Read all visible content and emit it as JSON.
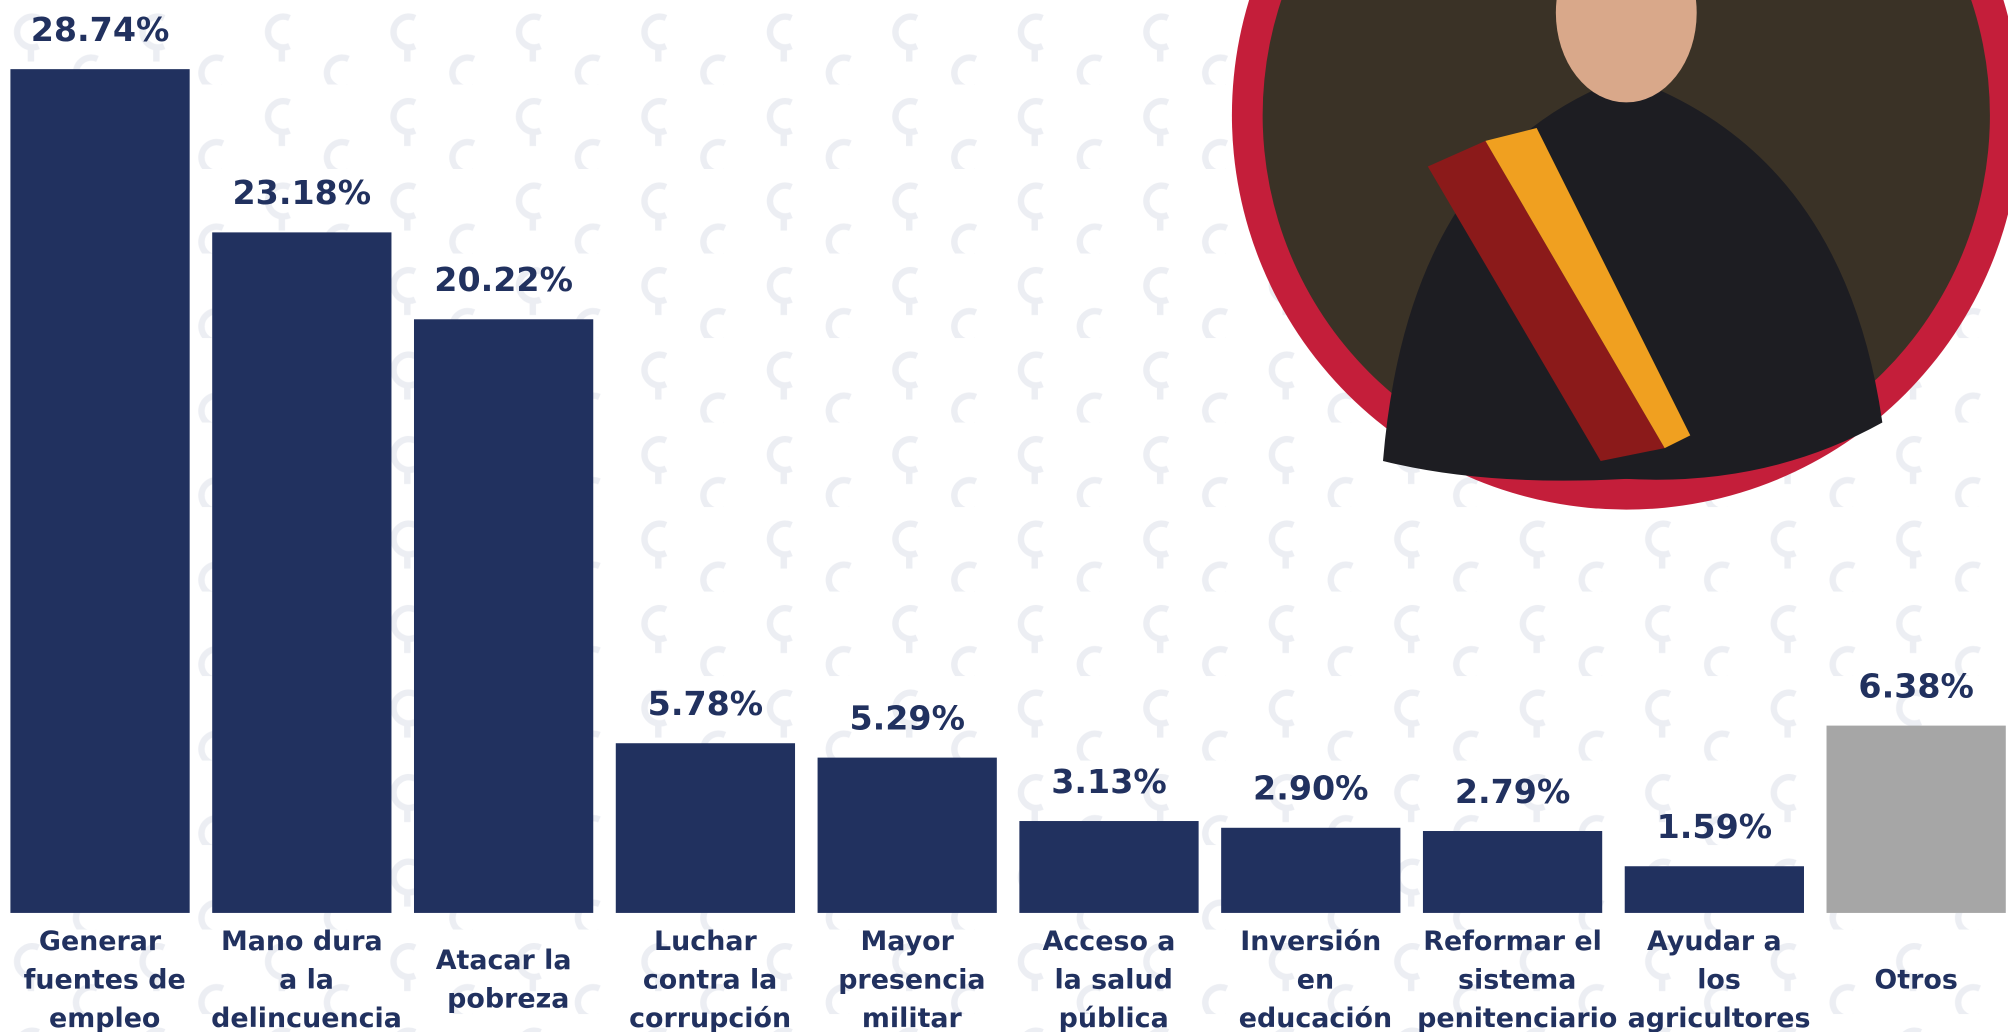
{
  "chart_data": {
    "type": "bar",
    "categories": [
      "Generar fuentes de empleo",
      "Mano dura a la delincuencia",
      "Atacar la pobreza",
      "Luchar contra la corrupción",
      "Mayor presencia militar",
      "Acceso a la salud pública",
      "Inversión en educación",
      "Reformar el sistema penitenciario",
      "Ayudar a los agricultores",
      "Otros"
    ],
    "values": [
      28.74,
      23.18,
      20.22,
      5.78,
      5.29,
      3.13,
      2.9,
      2.79,
      1.59,
      6.38
    ],
    "value_labels": [
      "28.74%",
      "23.18%",
      "20.22%",
      "5.78%",
      "5.29%",
      "3.13%",
      "2.90%",
      "2.79%",
      "1.59%",
      "6.38%"
    ],
    "colors": [
      "#21315f",
      "#21315f",
      "#21315f",
      "#21315f",
      "#21315f",
      "#21315f",
      "#21315f",
      "#21315f",
      "#21315f",
      "#a6a6a6"
    ]
  }
}
